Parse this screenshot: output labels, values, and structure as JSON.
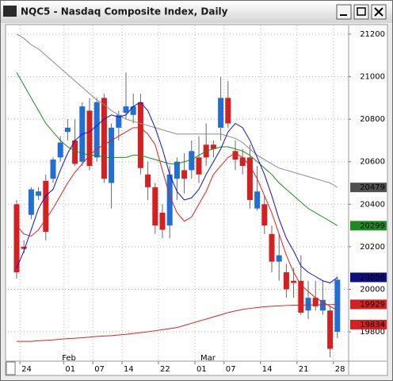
{
  "chart_data": {
    "type": "candlestick",
    "title": "NQC5 - Nasdaq Composite Index, Daily",
    "categories": [
      null,
      "24",
      null,
      null,
      null,
      null,
      null,
      "01",
      null,
      null,
      null,
      "07",
      null,
      null,
      null,
      "14",
      null,
      null,
      null,
      null,
      "22",
      null,
      null,
      null,
      null,
      "01",
      null,
      null,
      null,
      "07",
      null,
      null,
      null,
      null,
      "14",
      null,
      null,
      null,
      null,
      "21",
      null,
      null,
      null,
      null,
      "28"
    ],
    "months": [
      null,
      null,
      null,
      null,
      null,
      null,
      "Feb",
      null,
      null,
      null,
      null,
      null,
      null,
      null,
      null,
      null,
      null,
      null,
      null,
      null,
      null,
      null,
      null,
      null,
      null,
      "Mar",
      null,
      null,
      null,
      null,
      null,
      null,
      null,
      null,
      null,
      null,
      null,
      null,
      null,
      null,
      null,
      null,
      null,
      null,
      null
    ],
    "open": [
      20400,
      20200,
      20350,
      20440,
      20510,
      20520,
      20620,
      20740,
      20700,
      20600,
      20840,
      20620,
      20900,
      20500,
      20760,
      20830,
      20820,
      20880,
      20540,
      20480,
      20360,
      20300,
      20520,
      20560,
      20560,
      20620,
      20680,
      20680,
      20760,
      20900,
      20650,
      20620,
      20620,
      20380,
      20400,
      20260,
      20130,
      20080,
      20040,
      20040,
      19900,
      19960,
      19900,
      19900,
      19800
    ],
    "high": [
      20420,
      20230,
      20480,
      20480,
      20540,
      20620,
      20720,
      20800,
      20800,
      20880,
      20900,
      20900,
      20920,
      20780,
      20840,
      21020,
      20920,
      20920,
      20600,
      20500,
      20400,
      20580,
      20620,
      20640,
      20700,
      20720,
      20780,
      20700,
      21000,
      20980,
      20700,
      20660,
      20680,
      20580,
      20440,
      20300,
      20260,
      20120,
      20100,
      20160,
      20040,
      20040,
      20040,
      19920,
      20060
    ],
    "low": [
      20050,
      20170,
      20330,
      20420,
      20230,
      20500,
      20600,
      20700,
      20580,
      20580,
      20560,
      20600,
      20500,
      20380,
      20700,
      20800,
      20780,
      20540,
      20420,
      20260,
      20240,
      20240,
      20420,
      20450,
      20520,
      20500,
      20580,
      20620,
      20700,
      20760,
      20560,
      20540,
      20380,
      20370,
      20260,
      20080,
      20040,
      19960,
      19960,
      19880,
      19860,
      19900,
      19880,
      19680,
      19770
    ],
    "close": [
      20080,
      20190,
      20470,
      20460,
      20270,
      20610,
      20690,
      20760,
      20590,
      20860,
      20580,
      20880,
      20520,
      20760,
      20820,
      20860,
      20860,
      20570,
      20480,
      20300,
      20280,
      20540,
      20600,
      20520,
      20650,
      20540,
      20620,
      20660,
      20900,
      20780,
      20610,
      20580,
      20420,
      20460,
      20300,
      20130,
      20160,
      20000,
      20030,
      19890,
      19960,
      19920,
      19950,
      19720,
      20045
    ],
    "up_color": "#1f6fd6",
    "down_color": "#d42020",
    "overlays": [
      {
        "color": "#8c8c8c",
        "values": [
          21200,
          21180,
          21150,
          21130,
          21100,
          21070,
          21040,
          21010,
          20980,
          20950,
          20920,
          20890,
          20870,
          20840,
          20820,
          20800,
          20790,
          20780,
          20770,
          20760,
          20750,
          20740,
          20730,
          20730,
          20730,
          20730,
          20730,
          20730,
          20730,
          20720,
          20710,
          20690,
          20660,
          20630,
          20610,
          20590,
          20570,
          20560,
          20550,
          20540,
          20530,
          20520,
          20510,
          20500,
          20479
        ]
      },
      {
        "color": "#1f8a1f",
        "values": [
          21020,
          20960,
          20900,
          20840,
          20780,
          20740,
          20700,
          20670,
          20650,
          20640,
          20630,
          20630,
          20620,
          20620,
          20620,
          20620,
          20630,
          20630,
          20620,
          20610,
          20600,
          20590,
          20590,
          20600,
          20610,
          20630,
          20650,
          20660,
          20670,
          20670,
          20660,
          20650,
          20630,
          20600,
          20570,
          20540,
          20500,
          20470,
          20440,
          20410,
          20380,
          20360,
          20340,
          20320,
          20299
        ]
      },
      {
        "color": "#1010d0",
        "values": [
          20100,
          20180,
          20280,
          20380,
          20440,
          20470,
          20560,
          20640,
          20700,
          20730,
          20740,
          20770,
          20800,
          20820,
          20810,
          20820,
          20860,
          20880,
          20840,
          20760,
          20660,
          20540,
          20460,
          20420,
          20430,
          20470,
          20540,
          20600,
          20660,
          20740,
          20780,
          20760,
          20700,
          20620,
          20540,
          20440,
          20330,
          20240,
          20180,
          20110,
          20080,
          20060,
          20040,
          20030,
          20056
        ]
      },
      {
        "color": "#e02020",
        "values": [
          20300,
          20260,
          20250,
          20280,
          20330,
          20380,
          20440,
          20500,
          20550,
          20590,
          20630,
          20660,
          20680,
          20700,
          20720,
          20740,
          20760,
          20760,
          20730,
          20680,
          20560,
          20440,
          20360,
          20320,
          20340,
          20400,
          20460,
          20540,
          20580,
          20620,
          20640,
          20620,
          20580,
          20520,
          20440,
          20360,
          20260,
          20160,
          20080,
          20020,
          19990,
          19960,
          19940,
          19920,
          19900
        ]
      },
      {
        "color": "#e02020",
        "values": [
          19755,
          19755,
          19755,
          19758,
          19760,
          19762,
          19765,
          19768,
          19770,
          19772,
          19775,
          19778,
          19780,
          19782,
          19785,
          19788,
          19792,
          19796,
          19800,
          19805,
          19810,
          19815,
          19820,
          19830,
          19840,
          19850,
          19860,
          19870,
          19880,
          19890,
          19898,
          19905,
          19910,
          19914,
          19918,
          19920,
          19922,
          19924,
          19925,
          19926,
          19926,
          19927,
          19927,
          19928,
          19929
        ]
      }
    ],
    "price_markers": [
      {
        "value": 20479,
        "color": "#505050"
      },
      {
        "value": 20299,
        "color": "#1f8a1f"
      },
      {
        "value": 20056,
        "color": "#101080"
      },
      {
        "value": 19929,
        "color": "#d42020"
      },
      {
        "value": 19834,
        "color": "#d42020"
      }
    ],
    "ylim": [
      19662,
      21241
    ],
    "yticks": [
      19800,
      20000,
      20200,
      20400,
      20600,
      20800,
      21000,
      21200
    ],
    "grid": true
  }
}
